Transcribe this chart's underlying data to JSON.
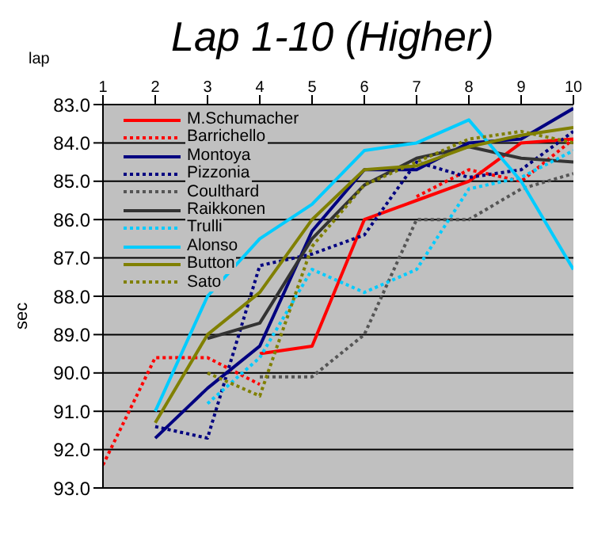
{
  "chart_data": {
    "type": "line",
    "title": "Lap 1-10 (Higher)",
    "xlabel": "lap",
    "ylabel": "sec",
    "x": [
      1,
      2,
      3,
      4,
      5,
      6,
      7,
      8,
      9,
      10
    ],
    "xlim": [
      1,
      10
    ],
    "xticks": [
      1,
      2,
      3,
      4,
      5,
      6,
      7,
      8,
      9,
      10
    ],
    "ylim": [
      93,
      83
    ],
    "yticks": [
      {
        "value": 83,
        "label": "83.0"
      },
      {
        "value": 84,
        "label": "84.0"
      },
      {
        "value": 85,
        "label": "85.0"
      },
      {
        "value": 86,
        "label": "86.0"
      },
      {
        "value": 87,
        "label": "87.0"
      },
      {
        "value": 88,
        "label": "88.0"
      },
      {
        "value": 89,
        "label": "89.0"
      },
      {
        "value": 90,
        "label": "90.0"
      },
      {
        "value": 91,
        "label": "91.0"
      },
      {
        "value": 92,
        "label": "92.0"
      },
      {
        "value": 93,
        "label": "93.0"
      }
    ],
    "grid": "y",
    "legend": "top left",
    "marker": "none",
    "series": [
      {
        "name": "M.Schumacher",
        "color": "#ff0000",
        "line_style": "solid",
        "values": [
          null,
          null,
          null,
          89.5,
          89.3,
          86.0,
          85.5,
          85.0,
          84.0,
          83.9
        ]
      },
      {
        "name": "Barrichello",
        "color": "#ff0000",
        "line_style": "dotted",
        "values": [
          92.4,
          89.6,
          89.6,
          90.3,
          null,
          null,
          85.4,
          84.7,
          85.0,
          83.9
        ]
      },
      {
        "name": "Montoya",
        "color": "#000080",
        "line_style": "solid",
        "values": [
          null,
          91.7,
          90.4,
          89.3,
          86.3,
          84.7,
          84.7,
          84.0,
          83.9,
          83.1
        ]
      },
      {
        "name": "Pizzonia",
        "color": "#000080",
        "line_style": "dotted",
        "values": [
          null,
          91.4,
          91.7,
          87.2,
          86.9,
          86.4,
          84.5,
          84.9,
          84.7,
          83.7
        ]
      },
      {
        "name": "Coulthard",
        "color": "#555555",
        "line_style": "dotted",
        "values": [
          null,
          null,
          null,
          90.1,
          90.1,
          89.0,
          86.0,
          86.0,
          85.2,
          84.8
        ]
      },
      {
        "name": "Raikkonen",
        "color": "#333333",
        "line_style": "solid",
        "values": [
          null,
          null,
          89.1,
          88.7,
          86.5,
          85.1,
          84.4,
          84.1,
          84.4,
          84.5
        ]
      },
      {
        "name": "Trulli",
        "color": "#00ccff",
        "line_style": "dotted",
        "values": [
          null,
          null,
          90.8,
          89.6,
          87.3,
          87.9,
          87.3,
          85.2,
          84.9,
          84.2
        ]
      },
      {
        "name": "Alonso",
        "color": "#00ccff",
        "line_style": "solid",
        "values": [
          null,
          91.0,
          88.0,
          86.5,
          85.6,
          84.2,
          84.0,
          83.4,
          85.0,
          87.3
        ]
      },
      {
        "name": "Button",
        "color": "#808000",
        "line_style": "solid",
        "values": [
          null,
          91.3,
          89.0,
          87.9,
          86.0,
          84.7,
          84.6,
          84.1,
          83.8,
          83.6
        ]
      },
      {
        "name": "Sato",
        "color": "#808000",
        "line_style": "dotted",
        "values": [
          null,
          null,
          90.0,
          90.6,
          86.7,
          85.1,
          84.5,
          83.9,
          83.7,
          84.0
        ]
      }
    ]
  }
}
